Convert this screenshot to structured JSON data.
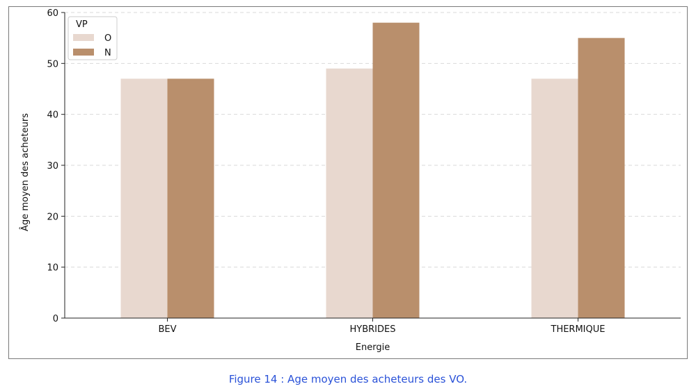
{
  "caption": "Figure 14 : Age moyen des acheteurs des VO.",
  "chart_data": {
    "type": "bar",
    "categories": [
      "BEV",
      "HYBRIDES",
      "THERMIQUE"
    ],
    "series": [
      {
        "name": "O",
        "values": [
          47,
          49,
          47
        ],
        "color": "#e8d8cf"
      },
      {
        "name": "N",
        "values": [
          47,
          58,
          55
        ],
        "color": "#b98f6c"
      }
    ],
    "xlabel": "Energie",
    "ylabel": "Âge moyen des acheteurs",
    "ylim": [
      0,
      60
    ],
    "yticks": [
      0,
      10,
      20,
      30,
      40,
      50,
      60
    ],
    "legend": {
      "title": "VP",
      "placement": "top-left"
    },
    "grid": "horizontal dashed"
  }
}
